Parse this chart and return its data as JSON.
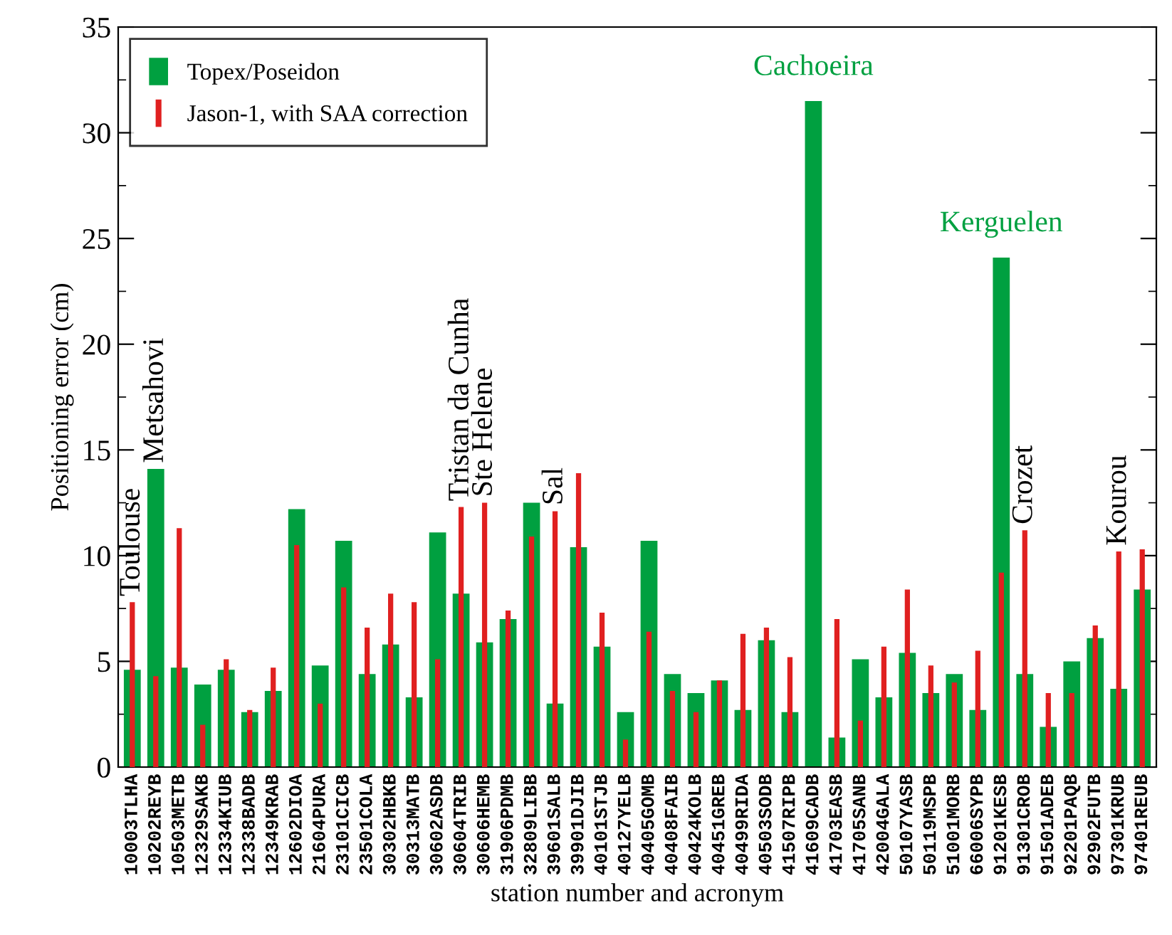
{
  "chart_data": {
    "type": "bar",
    "xlabel": "station number and acronym",
    "ylabel": "Positioning error (cm)",
    "categories": [
      "10003TLHA",
      "10202REYB",
      "10503METB",
      "12329SAKB",
      "12334KIUB",
      "12338BADB",
      "12349KRAB",
      "12602DIOA",
      "21604PURA",
      "23101CICB",
      "23501COLA",
      "30302HBKB",
      "30313MATB",
      "30602ASDB",
      "30604TRIB",
      "30606HEMB",
      "31906PDMB",
      "32809LIBB",
      "39601SALB",
      "39901DJIB",
      "40101STJB",
      "40127YELB",
      "40405GOMB",
      "40408FAIB",
      "40424KOLB",
      "40451GREB",
      "40499RIDA",
      "40503SODB",
      "41507RIPB",
      "41609CADB",
      "41703EASB",
      "41705SANB",
      "42004GALA",
      "50107YASB",
      "50119MSPB",
      "51001MORB",
      "66006SYPB",
      "91201KESB",
      "91301CROB",
      "91501ADEB",
      "92201PAQB",
      "92902FUTB",
      "97301KRUB",
      "97401REUB"
    ],
    "series": [
      {
        "name": "Topex/Poseidon",
        "color": "#00a040",
        "values": [
          4.6,
          14.1,
          4.7,
          3.9,
          4.6,
          2.6,
          3.6,
          12.2,
          4.8,
          10.7,
          4.4,
          5.8,
          3.3,
          11.1,
          8.2,
          5.9,
          7.0,
          12.5,
          3.0,
          10.4,
          5.7,
          2.6,
          10.7,
          4.4,
          3.5,
          4.1,
          2.7,
          6.0,
          2.6,
          31.5,
          1.4,
          5.1,
          3.3,
          5.4,
          3.5,
          4.4,
          2.7,
          24.1,
          4.4,
          1.9,
          5.0,
          6.1,
          3.7,
          8.4
        ]
      },
      {
        "name": "Jason-1, with SAA correction",
        "color": "#e02020",
        "values": [
          7.8,
          4.3,
          11.3,
          2.0,
          5.1,
          2.7,
          4.7,
          10.5,
          3.0,
          8.5,
          6.6,
          8.2,
          7.8,
          5.1,
          12.3,
          12.5,
          7.4,
          10.9,
          12.1,
          13.9,
          7.3,
          1.3,
          6.4,
          3.6,
          2.6,
          4.1,
          6.3,
          6.6,
          5.2,
          null,
          7.0,
          2.2,
          5.7,
          8.4,
          4.8,
          4.0,
          5.5,
          9.2,
          11.2,
          3.5,
          3.5,
          6.7,
          10.2,
          10.3
        ]
      }
    ],
    "ylim": [
      0,
      35
    ],
    "yticks": [
      0,
      5,
      10,
      15,
      20,
      25,
      30,
      35
    ],
    "grid": false,
    "legend": "top left",
    "annotations": [
      {
        "text": "Toulouse",
        "x": "10003TLHA",
        "y": 7.8
      },
      {
        "text": "Metsahovi",
        "x": "10202REYB",
        "y": 14.1
      },
      {
        "text": "Tristan da Cunha",
        "x": "30604TRIB",
        "y": 12.3
      },
      {
        "text": "Ste Helene",
        "x": "30606HEMB",
        "y": 12.5
      },
      {
        "text": "Sal",
        "x": "39601SALB",
        "y": 12.1
      },
      {
        "text": "Cachoeira",
        "x": "41609CADB",
        "y": 31.5
      },
      {
        "text": "Kerguelen",
        "x": "91201KESB",
        "y": 24.1
      },
      {
        "text": "Crozet",
        "x": "91301CROB",
        "y": 11.2
      },
      {
        "text": "Kourou",
        "x": "97301KRUB",
        "y": 10.2
      }
    ]
  }
}
